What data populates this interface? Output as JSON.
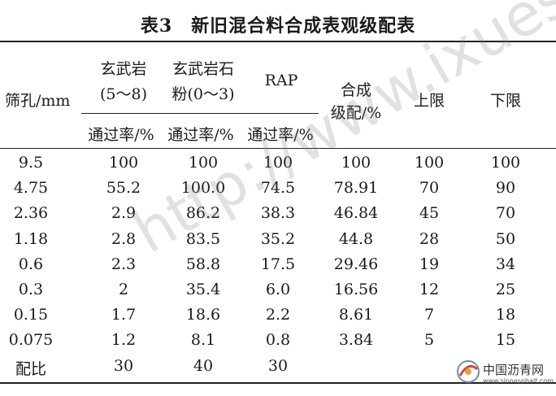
{
  "table": {
    "title": "表3　新旧混合料合成表观级配表",
    "headers": {
      "sieve": "筛孔/mm",
      "col1_line1": "玄武岩",
      "col1_line2": "(5～8)",
      "col2_line1": "玄武岩石",
      "col2_line2": "粉(0～3)",
      "col3": "RAP",
      "col4_line1": "合成",
      "col4_line2": "级配/%",
      "col5": "上限",
      "col6": "下限",
      "pass1": "通过率/%",
      "pass2": "通过率/%",
      "pass3": "通过率/%"
    },
    "rows": [
      [
        "9.5",
        "100",
        "100",
        "100",
        "100",
        "100",
        "100"
      ],
      [
        "4.75",
        "55.2",
        "100.0",
        "74.5",
        "78.91",
        "70",
        "90"
      ],
      [
        "2.36",
        "2.9",
        "86.2",
        "38.3",
        "46.84",
        "45",
        "70"
      ],
      [
        "1.18",
        "2.8",
        "83.5",
        "35.2",
        "44.8",
        "28",
        "50"
      ],
      [
        "0.6",
        "2.3",
        "58.8",
        "17.5",
        "29.46",
        "19",
        "34"
      ],
      [
        "0.3",
        "2",
        "35.4",
        "6.0",
        "16.56",
        "12",
        "25"
      ],
      [
        "0.15",
        "1.7",
        "18.6",
        "2.2",
        "8.61",
        "7",
        "18"
      ],
      [
        "0.075",
        "1.2",
        "8.1",
        "0.8",
        "3.84",
        "5",
        "15"
      ],
      [
        "配比",
        "30",
        "40",
        "30",
        "",
        "",
        ""
      ]
    ]
  },
  "watermark": "http://www.ixuesh",
  "logo": {
    "text": "中国沥青网",
    "url_text": "www.sinoasphalt.com"
  }
}
